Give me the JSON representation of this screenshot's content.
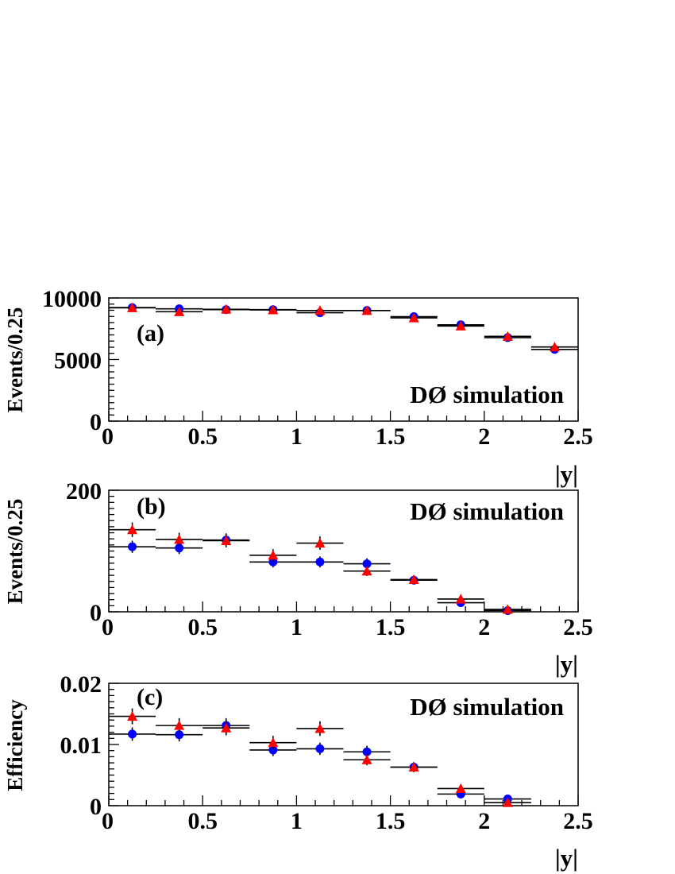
{
  "colors": {
    "series_a": "#0000ff",
    "series_b": "#ff0000",
    "axes": "#000000"
  },
  "chart_data": [
    {
      "type": "scatter",
      "panel_label": "(a)",
      "annotation": "DØ simulation",
      "xlabel": "|y|",
      "ylabel": "Events/0.25",
      "xlim": [
        0,
        2.5
      ],
      "ylim": [
        0,
        10000
      ],
      "xticks": [
        0,
        0.5,
        1,
        1.5,
        2,
        2.5
      ],
      "xtick_labels": [
        "0",
        "0.5",
        "1",
        "1.5",
        "2",
        "2.5"
      ],
      "yticks": [
        0,
        5000,
        10000
      ],
      "ytick_labels": [
        "0",
        "5000",
        "10000"
      ],
      "x": [
        0.125,
        0.375,
        0.625,
        0.875,
        1.125,
        1.375,
        1.625,
        1.875,
        2.125,
        2.375
      ],
      "x_half_width": 0.125,
      "series": [
        {
          "name": "circles",
          "marker": "circle",
          "color": "#0000ff",
          "values": [
            9220,
            9120,
            9050,
            9050,
            8800,
            8980,
            8480,
            7820,
            6780,
            5820
          ],
          "errors": [
            0,
            0,
            0,
            0,
            0,
            0,
            0,
            0,
            0,
            0
          ]
        },
        {
          "name": "triangles",
          "marker": "triangle",
          "color": "#ff0000",
          "values": [
            9200,
            8880,
            9080,
            9030,
            8980,
            8980,
            8380,
            7720,
            6880,
            6020
          ],
          "errors": [
            0,
            0,
            0,
            0,
            0,
            0,
            0,
            0,
            0,
            0
          ]
        }
      ]
    },
    {
      "type": "scatter",
      "panel_label": "(b)",
      "annotation": "DØ simulation",
      "xlabel": "|y|",
      "ylabel": "Events/0.25",
      "xlim": [
        0,
        2.5
      ],
      "ylim": [
        0,
        200
      ],
      "xticks": [
        0,
        0.5,
        1,
        1.5,
        2,
        2.5
      ],
      "xtick_labels": [
        "0",
        "0.5",
        "1",
        "1.5",
        "2",
        "2.5"
      ],
      "yticks": [
        0,
        200
      ],
      "ytick_labels": [
        "0",
        "200"
      ],
      "x": [
        0.125,
        0.375,
        0.625,
        0.875,
        1.125,
        1.375,
        1.625,
        1.875,
        2.125
      ],
      "x_half_width": 0.125,
      "series": [
        {
          "name": "circles",
          "marker": "circle",
          "color": "#0000ff",
          "values": [
            107,
            105,
            118,
            82,
            82,
            79,
            52,
            15,
            2
          ],
          "errors": [
            10,
            10,
            11,
            9,
            9,
            9,
            7,
            4,
            2
          ]
        },
        {
          "name": "triangles",
          "marker": "triangle",
          "color": "#ff0000",
          "values": [
            135,
            119,
            117,
            93,
            113,
            67,
            53,
            21,
            4
          ],
          "errors": [
            12,
            11,
            11,
            10,
            11,
            8,
            7,
            5,
            2
          ]
        }
      ]
    },
    {
      "type": "scatter",
      "panel_label": "(c)",
      "annotation": "DØ simulation",
      "xlabel": "|y|",
      "ylabel": "Efficiency",
      "xlim": [
        0,
        2.5
      ],
      "ylim": [
        0,
        0.02
      ],
      "xticks": [
        0,
        0.5,
        1,
        1.5,
        2,
        2.5
      ],
      "xtick_labels": [
        "0",
        "0.5",
        "1",
        "1.5",
        "2",
        "2.5"
      ],
      "yticks": [
        0,
        0.01,
        0.02
      ],
      "ytick_labels": [
        "0",
        "0.01",
        "0.02"
      ],
      "x": [
        0.125,
        0.375,
        0.625,
        0.875,
        1.125,
        1.375,
        1.625,
        1.875,
        2.125
      ],
      "x_half_width": 0.125,
      "series": [
        {
          "name": "circles",
          "marker": "circle",
          "color": "#0000ff",
          "values": [
            0.0117,
            0.0116,
            0.0131,
            0.0091,
            0.0093,
            0.0088,
            0.0063,
            0.0019,
            0.0011
          ],
          "errors": [
            0.0011,
            0.0011,
            0.0012,
            0.001,
            0.001,
            0.001,
            0.0008,
            0.0005,
            0.0003
          ]
        },
        {
          "name": "triangles",
          "marker": "triangle",
          "color": "#ff0000",
          "values": [
            0.0146,
            0.0131,
            0.0127,
            0.0103,
            0.0126,
            0.0075,
            0.0063,
            0.0028,
            0.0005
          ],
          "errors": [
            0.0013,
            0.0012,
            0.0012,
            0.0011,
            0.0012,
            0.0009,
            0.0008,
            0.0006,
            0.0003
          ]
        }
      ]
    }
  ]
}
